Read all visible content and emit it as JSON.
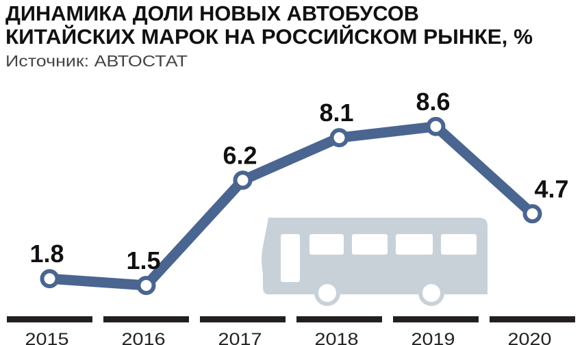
{
  "chart_data": {
    "type": "line",
    "title": [
      "ДИНАМИКА ДОЛИ НОВЫХ АВТОБУСОВ",
      "КИТАЙСКИХ МАРОК НА РОССИЙСКОМ РЫНКЕ, %"
    ],
    "subtitle": "Источник: АВТОСТАТ",
    "categories": [
      "2015",
      "2016",
      "2017",
      "2018",
      "2019",
      "2020"
    ],
    "values": [
      1.8,
      1.5,
      6.2,
      8.1,
      8.6,
      4.7
    ],
    "color": "#4a6590"
  }
}
